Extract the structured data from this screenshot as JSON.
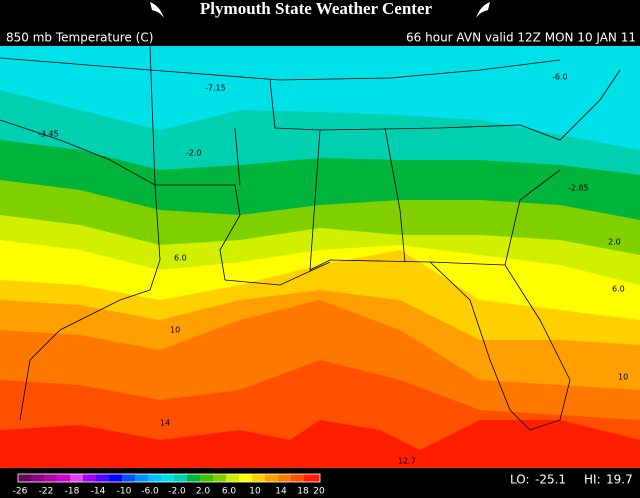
{
  "header": {
    "title": "Plymouth State Weather Center",
    "product": "850 mb Temperature (C)",
    "valid": "66 hour AVN valid 12Z MON 10 JAN 11"
  },
  "contour_labels": [
    "-7.15",
    "-6.0",
    "-3.45",
    "-2.0",
    "-2.85",
    "2.0",
    "6.0",
    "6.0",
    "10",
    "10",
    "14",
    "12.7"
  ],
  "colorbar": {
    "labels": [
      "-26",
      "-22",
      "-18",
      "-14",
      "-10",
      "-6.0",
      "-2.0",
      "2.0",
      "6.0",
      "10",
      "14",
      "18",
      "20"
    ]
  },
  "extremes": {
    "lo_label": "LO:",
    "lo": "-25.1",
    "hi_label": "HI:",
    "hi": "19.7"
  }
}
